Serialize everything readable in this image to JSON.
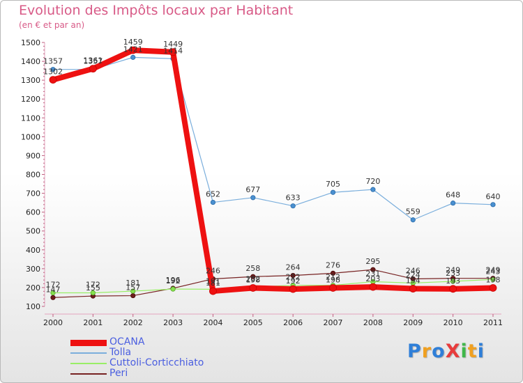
{
  "title": "Evolution des Impôts locaux par Habitant",
  "subtitle": "(en € et par an)",
  "brand": "ProXiti",
  "chart_data": {
    "type": "line",
    "title": "Evolution des Impôts locaux par Habitant",
    "subtitle": "(en € et par an)",
    "xlabel": "",
    "ylabel": "",
    "x": [
      "2000",
      "2001",
      "2002",
      "2003",
      "2004",
      "2005",
      "2006",
      "2007",
      "2008",
      "2009",
      "2010",
      "2011"
    ],
    "ylim": [
      100,
      1500
    ],
    "yticks": [
      100,
      200,
      300,
      400,
      500,
      600,
      700,
      800,
      900,
      1000,
      1100,
      1200,
      1300,
      1400,
      1500
    ],
    "grid": false,
    "legend_position": "bottom-left",
    "series": [
      {
        "name": "OCANA",
        "color": "#ee1111",
        "values": [
          1302,
          1361,
          1459,
          1449,
          181,
          198,
          192,
          198,
          203,
          194,
          193,
          198
        ]
      },
      {
        "name": "Tolla",
        "color": "#7aaedc",
        "values": [
          1357,
          1357,
          1421,
          1414,
          652,
          677,
          633,
          705,
          720,
          559,
          648,
          640
        ]
      },
      {
        "name": "Cuttoli-Corticchiato",
        "color": "#99ee66",
        "values": [
          172,
          172,
          181,
          192,
          191,
          202,
          212,
          212,
          231,
          224,
          233,
          243
        ]
      },
      {
        "name": "Peri",
        "color": "#772222",
        "values": [
          147,
          155,
          157,
          196,
          246,
          258,
          264,
          276,
          295,
          246,
          249,
          249
        ]
      }
    ],
    "data_labels": [
      {
        "series": "OCANA",
        "labels": [
          "1302",
          "1361",
          "1459",
          "1449",
          "181",
          "198",
          "192",
          "198",
          "203",
          "194",
          "193",
          "198"
        ]
      },
      {
        "series": "Tolla",
        "labels": [
          "1357",
          "1357",
          "1421",
          "1414",
          "652",
          "677",
          "633",
          "705",
          "720",
          "559",
          "648",
          "640"
        ]
      },
      {
        "series": "Cuttoli-Corticchiato",
        "labels": [
          "172",
          "172",
          "181",
          "192",
          "191",
          "202",
          "212",
          "212",
          "231",
          "224",
          "233",
          "243"
        ]
      },
      {
        "series": "Peri",
        "labels": [
          "147",
          "155",
          "157",
          "196",
          "246",
          "258",
          "264",
          "276",
          "295",
          "246",
          "249",
          "249"
        ]
      }
    ]
  }
}
